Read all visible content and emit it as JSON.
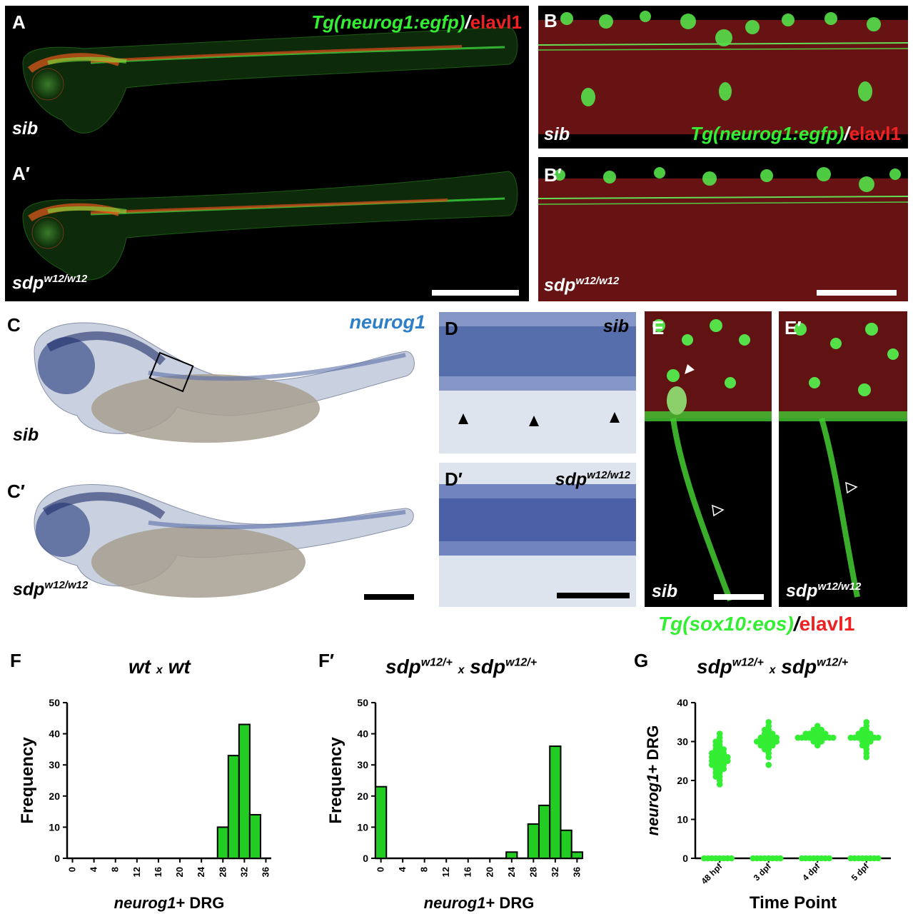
{
  "panel_letters": {
    "A": "A",
    "A2": "A′",
    "B": "B",
    "B2": "B′",
    "C": "C",
    "C2": "C′",
    "D": "D",
    "D2": "D′",
    "E": "E",
    "E2": "E′",
    "F": "F",
    "F2": "F′",
    "G": "G"
  },
  "genotypes": {
    "sib": "sib",
    "mut_base": "sdp",
    "mut_sup": "w12/w12"
  },
  "markers": {
    "ngn_tg": "Tg(neurog1:egfp)",
    "slash": "/",
    "elavl1": "elavl1",
    "neurog1": "neurog1",
    "sox_tg": "Tg(sox10:eos)"
  },
  "colors": {
    "green_channel": "#33ee33",
    "red_channel": "#ee2222",
    "ish_blue": "#2f7fc8",
    "bar_fill": "#22cc22",
    "point_fill": "#33ee33"
  },
  "chart_data": [
    {
      "type": "bar",
      "panel": "F",
      "title_parts": [
        "wt",
        "x",
        "wt"
      ],
      "xlabel_italic": "neurog1",
      "xlabel_rest": "+ DRG",
      "ylabel": "Frequency",
      "ylim": [
        0,
        50
      ],
      "yticks": [
        0,
        10,
        20,
        30,
        40,
        50
      ],
      "xticks": [
        0,
        4,
        8,
        12,
        16,
        20,
        24,
        28,
        32,
        36
      ],
      "bin_width": 2,
      "bins": [
        28,
        30,
        32,
        34
      ],
      "values": [
        10,
        33,
        43,
        14
      ]
    },
    {
      "type": "bar",
      "panel": "F′",
      "title_parts": [
        "sdp",
        "w12/+",
        "x",
        "sdp",
        "w12/+"
      ],
      "xlabel_italic": "neurog1",
      "xlabel_rest": "+ DRG",
      "ylabel": "Frequency",
      "ylim": [
        0,
        50
      ],
      "yticks": [
        0,
        10,
        20,
        30,
        40,
        50
      ],
      "xticks": [
        0,
        4,
        8,
        12,
        16,
        20,
        24,
        28,
        32,
        36
      ],
      "bin_width": 2,
      "bins": [
        0,
        24,
        28,
        30,
        32,
        34,
        36
      ],
      "values": [
        23,
        2,
        11,
        17,
        36,
        9,
        2
      ]
    },
    {
      "type": "scatter",
      "panel": "G",
      "title_parts": [
        "sdp",
        "w12/+",
        "x",
        "sdp",
        "w12/+"
      ],
      "ylabel_italic": "neurog1",
      "ylabel_rest": "+ DRG",
      "xlabel": "Time Point",
      "ylim": [
        0,
        40
      ],
      "yticks": [
        0,
        10,
        20,
        30,
        40
      ],
      "categories": [
        "48 hpf",
        "3 dpf",
        "4 dpf",
        "5 dpf"
      ],
      "series": [
        {
          "category": "48 hpf",
          "values": [
            32,
            31,
            30,
            30,
            29,
            29,
            28,
            28,
            28,
            27,
            27,
            27,
            27,
            26,
            26,
            26,
            26,
            26,
            25,
            25,
            25,
            25,
            25,
            24,
            24,
            24,
            24,
            23,
            23,
            23,
            22,
            22,
            21,
            21,
            20,
            19,
            0,
            0,
            0,
            0,
            0,
            0,
            0,
            0
          ]
        },
        {
          "category": "3 dpf",
          "values": [
            35,
            34,
            33,
            33,
            32,
            32,
            32,
            31,
            31,
            31,
            31,
            31,
            30,
            30,
            30,
            30,
            30,
            30,
            29,
            29,
            29,
            29,
            28,
            28,
            27,
            26,
            24,
            0,
            0,
            0,
            0,
            0,
            0,
            0,
            0
          ]
        },
        {
          "category": "4 dpf",
          "values": [
            34,
            33,
            33,
            33,
            32,
            32,
            32,
            32,
            32,
            32,
            31,
            31,
            31,
            31,
            31,
            31,
            31,
            31,
            31,
            31,
            30,
            30,
            30,
            29,
            0,
            0,
            0,
            0,
            0,
            0,
            0,
            0
          ]
        },
        {
          "category": "5 dpf",
          "values": [
            35,
            34,
            33,
            33,
            32,
            32,
            32,
            32,
            31,
            31,
            31,
            31,
            31,
            31,
            31,
            31,
            30,
            30,
            30,
            29,
            29,
            28,
            27,
            26,
            0,
            0,
            0,
            0,
            0,
            0,
            0,
            0
          ]
        }
      ]
    }
  ]
}
